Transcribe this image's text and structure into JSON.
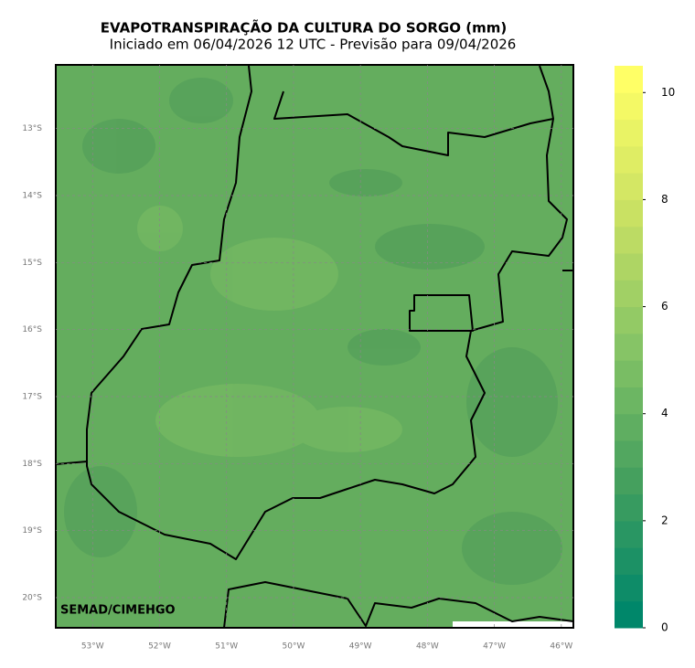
{
  "title": "EVAPOTRANSPIRAÇÃO DA CULTURA DO SORGO (mm)",
  "subtitle": "Iniciado em 06/04/2026 12 UTC - Previsão para 09/04/2026",
  "credit": "SEMAD/CIMEHGO",
  "map": {
    "lat_range": [
      -12.05,
      -20.45
    ],
    "lon_range": [
      -53.55,
      -45.82
    ],
    "lat_ticks": [
      {
        "value": -13,
        "label": "13°S"
      },
      {
        "value": -14,
        "label": "14°S"
      },
      {
        "value": -15,
        "label": "15°S"
      },
      {
        "value": -16,
        "label": "16°S"
      },
      {
        "value": -17,
        "label": "17°S"
      },
      {
        "value": -18,
        "label": "18°S"
      },
      {
        "value": -19,
        "label": "19°S"
      },
      {
        "value": -20,
        "label": "20°S"
      }
    ],
    "lon_ticks": [
      {
        "value": -53,
        "label": "53°W"
      },
      {
        "value": -52,
        "label": "52°W"
      },
      {
        "value": -51,
        "label": "51°W"
      },
      {
        "value": -50,
        "label": "50°W"
      },
      {
        "value": -49,
        "label": "49°W"
      },
      {
        "value": -48,
        "label": "48°W"
      },
      {
        "value": -47,
        "label": "47°W"
      },
      {
        "value": -46,
        "label": "46°W"
      }
    ]
  },
  "colorbar": {
    "range": [
      0,
      10.5
    ],
    "ticks": [
      0,
      2,
      4,
      6,
      8,
      10
    ],
    "step": 0.5,
    "colors": [
      "#00876a",
      "#45a05e",
      "#86c466",
      "#c9e163",
      "#ffff66"
    ]
  }
}
